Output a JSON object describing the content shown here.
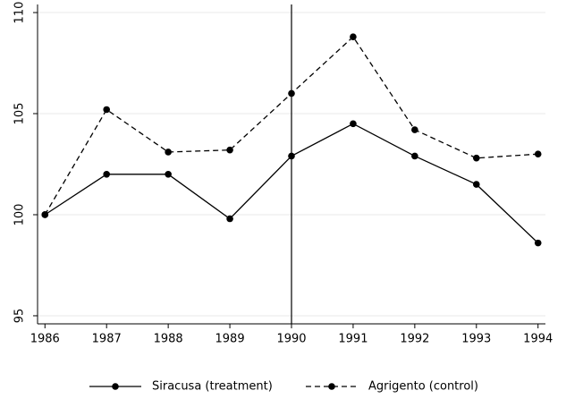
{
  "chart_data": {
    "type": "line",
    "x": [
      1986,
      1987,
      1988,
      1989,
      1990,
      1991,
      1992,
      1993,
      1994
    ],
    "series": [
      {
        "name": "Siracusa (treatment)",
        "color": "#000000",
        "dash": "solid",
        "values": [
          100,
          102.0,
          102.0,
          99.8,
          102.9,
          104.5,
          102.9,
          101.5,
          98.6
        ]
      },
      {
        "name": "Agrigento (control)",
        "color": "#000000",
        "dash": "dashed",
        "values": [
          100,
          105.2,
          103.1,
          103.2,
          106.0,
          108.8,
          104.2,
          102.8,
          103.0
        ]
      }
    ],
    "xlim": [
      1985.88,
      1994.12
    ],
    "xticks": [
      1986,
      1987,
      1988,
      1989,
      1990,
      1991,
      1992,
      1993,
      1994
    ],
    "ylim": [
      94.6,
      110.4
    ],
    "yticks": [
      95,
      100,
      105,
      110
    ],
    "vline": 1990,
    "grid": true,
    "legend": "bottom"
  }
}
